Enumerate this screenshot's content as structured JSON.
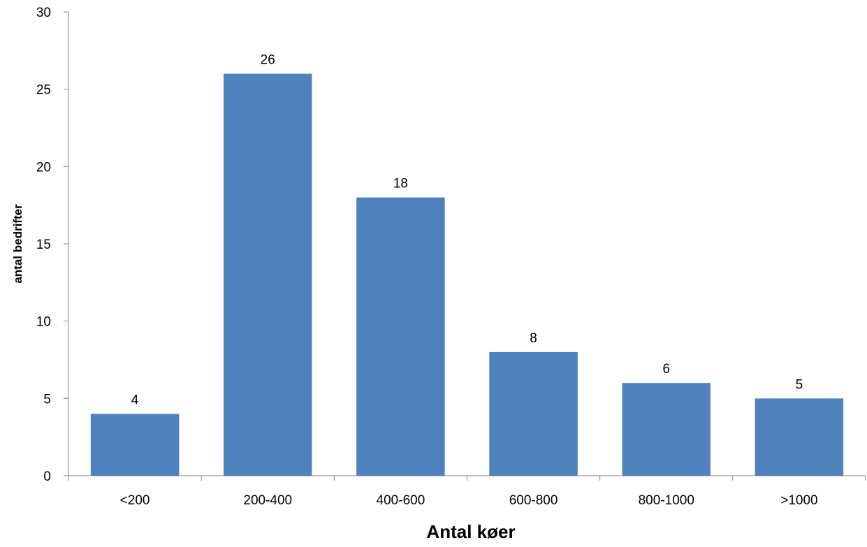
{
  "chart_data": {
    "type": "bar",
    "categories": [
      "<200",
      "200-400",
      "400-600",
      "600-800",
      "800-1000",
      ">1000"
    ],
    "values": [
      4,
      26,
      18,
      8,
      6,
      5
    ],
    "data_labels": [
      "4",
      "26",
      "18",
      "8",
      "6",
      "5"
    ],
    "title": "",
    "xlabel": "Antal køer",
    "ylabel": "antal bedrifter",
    "ylim": [
      0,
      30
    ],
    "yticks": [
      0,
      5,
      10,
      15,
      20,
      25,
      30
    ],
    "ytick_labels": [
      "0",
      "5",
      "10",
      "15",
      "20",
      "25",
      "30"
    ],
    "grid": false,
    "legend": "none",
    "colors": {
      "bar": "#4f81bd",
      "axis": "#868686"
    }
  }
}
